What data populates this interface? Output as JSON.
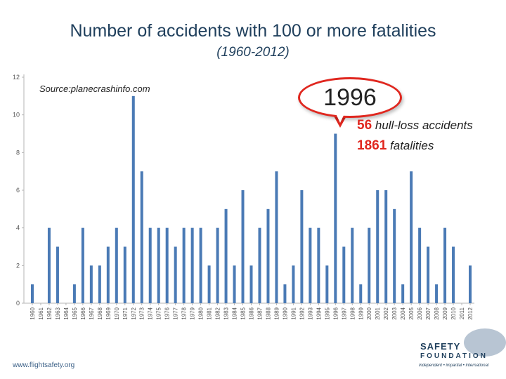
{
  "chart_data": {
    "type": "bar",
    "title": "Number of accidents with 100 or more fatalities",
    "subtitle": "(1960-2012)",
    "xlabel": "",
    "ylabel": "",
    "ylim": [
      0,
      12
    ],
    "yticks": [
      0,
      2,
      4,
      6,
      8,
      10,
      12
    ],
    "grid": false,
    "legend": "none",
    "bar_color": "#4a7ab5",
    "categories": [
      "1960",
      "1961",
      "1962",
      "1963",
      "1964",
      "1965",
      "1966",
      "1967",
      "1968",
      "1969",
      "1970",
      "1971",
      "1972",
      "1973",
      "1974",
      "1975",
      "1976",
      "1977",
      "1978",
      "1979",
      "1980",
      "1981",
      "1982",
      "1983",
      "1984",
      "1985",
      "1986",
      "1987",
      "1988",
      "1989",
      "1990",
      "1991",
      "1992",
      "1993",
      "1994",
      "1995",
      "1996",
      "1997",
      "1998",
      "1999",
      "2000",
      "2001",
      "2002",
      "2003",
      "2004",
      "2005",
      "2006",
      "2007",
      "2008",
      "2009",
      "2010",
      "2011",
      "2012"
    ],
    "values": [
      1,
      0,
      4,
      3,
      0,
      1,
      4,
      2,
      2,
      3,
      4,
      3,
      11,
      7,
      4,
      4,
      4,
      3,
      4,
      4,
      4,
      2,
      4,
      5,
      2,
      6,
      2,
      4,
      5,
      7,
      1,
      2,
      6,
      4,
      4,
      2,
      9,
      3,
      4,
      1,
      4,
      6,
      6,
      5,
      1,
      7,
      4,
      3,
      1,
      4,
      3,
      0,
      2
    ],
    "annotations": {
      "source": "Source:planecrashinfo.com",
      "callout_year": "1996",
      "line1_value": "56",
      "line1_text": "hull-loss accidents",
      "line2_value": "1861",
      "line2_text": "fatalities"
    }
  },
  "footer": {
    "url": "www.flightsafety.org",
    "logo_word1": "SAFETY",
    "logo_word2": "FOUNDATION",
    "logo_tagline": "independent • impartial • international"
  }
}
